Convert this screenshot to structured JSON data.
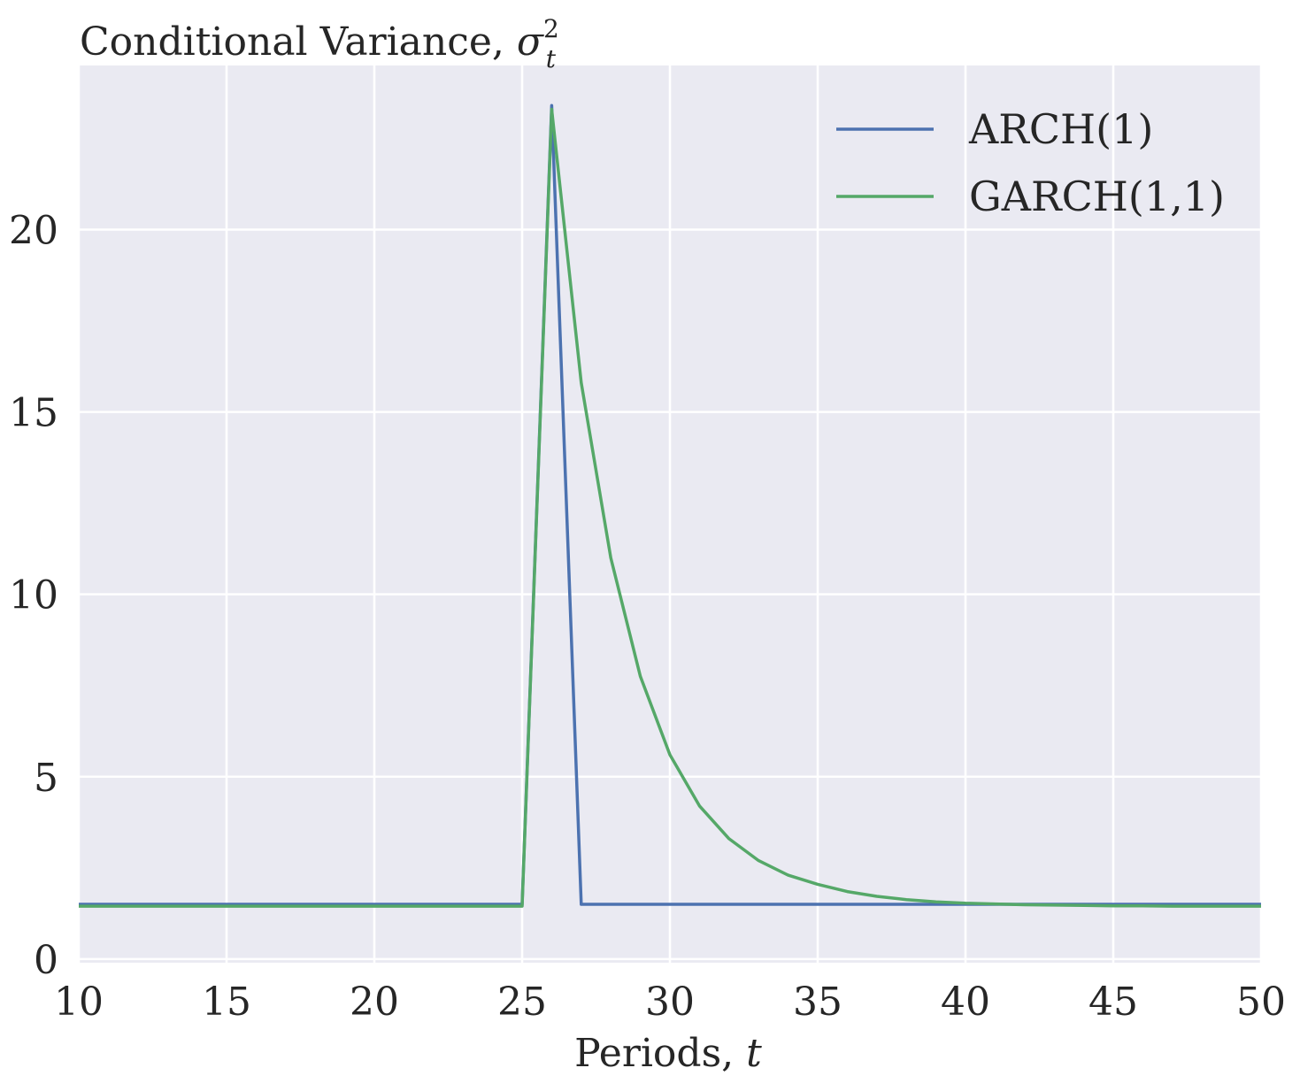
{
  "chart_data": {
    "type": "line",
    "title": "Conditional Variance, ",
    "title_math_symbol": "σ",
    "title_math_superscript": "2",
    "title_math_subscript": "t",
    "xlabel": "Periods, ",
    "xlabel_math": "t",
    "ylabel": "",
    "xlim": [
      10,
      50
    ],
    "ylim": [
      -0.1,
      24.5
    ],
    "xticks": [
      10,
      15,
      20,
      25,
      30,
      35,
      40,
      45,
      50
    ],
    "xtick_labels": [
      "10",
      "15",
      "20",
      "25",
      "30",
      "35",
      "40",
      "45",
      "50"
    ],
    "yticks": [
      0,
      5,
      10,
      15,
      20
    ],
    "ytick_labels": [
      "0",
      "5",
      "10",
      "15",
      "20"
    ],
    "grid": true,
    "background": "#EAEAF2",
    "grid_color": "#FFFFFF",
    "legend_position": "top-right",
    "x": [
      10,
      11,
      12,
      13,
      14,
      15,
      16,
      17,
      18,
      19,
      20,
      21,
      22,
      23,
      24,
      25,
      26,
      27,
      28,
      29,
      30,
      31,
      32,
      33,
      34,
      35,
      36,
      37,
      38,
      39,
      40,
      41,
      42,
      43,
      44,
      45,
      46,
      47,
      48,
      49,
      50
    ],
    "series": [
      {
        "name": "ARCH(1)",
        "color": "#4C72B0",
        "values": [
          1.5,
          1.5,
          1.5,
          1.5,
          1.5,
          1.5,
          1.5,
          1.5,
          1.5,
          1.5,
          1.5,
          1.5,
          1.5,
          1.5,
          1.5,
          1.5,
          23.4,
          1.5,
          1.5,
          1.5,
          1.5,
          1.5,
          1.5,
          1.5,
          1.5,
          1.5,
          1.5,
          1.5,
          1.5,
          1.5,
          1.5,
          1.5,
          1.5,
          1.5,
          1.5,
          1.5,
          1.5,
          1.5,
          1.5,
          1.5,
          1.5
        ]
      },
      {
        "name": "GARCH(1,1)",
        "color": "#55A868",
        "values": [
          1.45,
          1.45,
          1.45,
          1.45,
          1.45,
          1.45,
          1.45,
          1.45,
          1.45,
          1.45,
          1.45,
          1.45,
          1.45,
          1.45,
          1.45,
          1.45,
          23.3,
          15.8,
          11.0,
          7.75,
          5.6,
          4.2,
          3.3,
          2.7,
          2.3,
          2.05,
          1.85,
          1.72,
          1.63,
          1.57,
          1.53,
          1.51,
          1.49,
          1.48,
          1.47,
          1.46,
          1.46,
          1.45,
          1.45,
          1.45,
          1.45
        ]
      }
    ]
  }
}
